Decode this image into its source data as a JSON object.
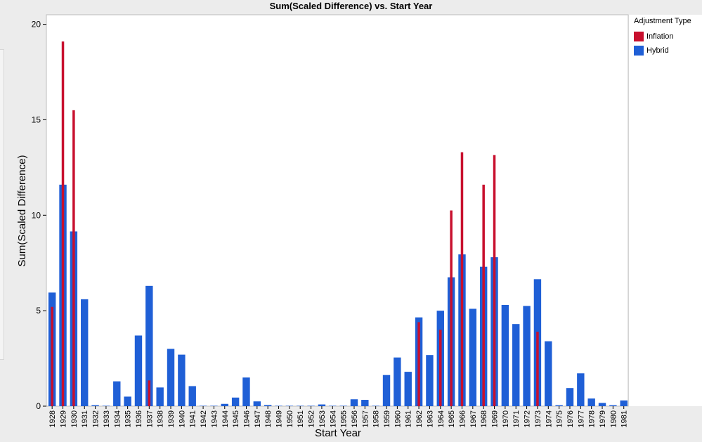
{
  "chart_data": {
    "type": "bar",
    "title": "Sum(Scaled Difference) vs. Start Year",
    "xlabel": "Start Year",
    "ylabel": "Sum(Scaled Difference)",
    "ylim": [
      0,
      20.5
    ],
    "yticks": [
      0,
      5,
      10,
      15,
      20
    ],
    "legend_title": "Adjustment Type",
    "legend_position": "right",
    "grid": false,
    "categories": [
      "1928",
      "1929",
      "1930",
      "1931",
      "1932",
      "1933",
      "1934",
      "1935",
      "1936",
      "1937",
      "1938",
      "1939",
      "1940",
      "1941",
      "1942",
      "1943",
      "1944",
      "1945",
      "1946",
      "1947",
      "1948",
      "1949",
      "1950",
      "1951",
      "1952",
      "1953",
      "1954",
      "1955",
      "1956",
      "1957",
      "1958",
      "1959",
      "1960",
      "1961",
      "1962",
      "1963",
      "1964",
      "1965",
      "1966",
      "1967",
      "1968",
      "1969",
      "1970",
      "1971",
      "1972",
      "1973",
      "1974",
      "1975",
      "1976",
      "1977",
      "1978",
      "1979",
      "1980",
      "1981"
    ],
    "series": [
      {
        "name": "Inflation",
        "color": "#c8102e",
        "values": [
          5.2,
          19.1,
          15.5,
          0,
          0,
          0,
          0,
          0,
          0,
          1.35,
          0,
          0,
          0,
          0,
          0,
          0,
          0,
          0,
          0,
          0,
          0,
          0,
          0,
          0,
          0,
          0,
          0,
          0,
          0,
          0,
          0,
          0,
          0,
          0,
          4.4,
          0,
          4.0,
          10.25,
          13.3,
          0,
          11.6,
          13.15,
          0,
          0,
          0,
          3.9,
          0,
          0,
          0,
          0,
          0,
          0,
          0,
          0
        ]
      },
      {
        "name": "Hybrid",
        "color": "#1f5fd6",
        "values": [
          5.95,
          11.6,
          9.15,
          5.6,
          0.05,
          0.02,
          1.3,
          0.5,
          3.7,
          6.3,
          0.98,
          3.0,
          2.7,
          1.05,
          0.02,
          0.02,
          0.12,
          0.45,
          1.5,
          0.25,
          0.06,
          0.02,
          0.02,
          0.02,
          0.02,
          0.09,
          0.02,
          0.02,
          0.36,
          0.33,
          0.02,
          1.63,
          2.55,
          1.8,
          4.65,
          2.68,
          5.0,
          6.75,
          7.95,
          5.1,
          7.3,
          7.8,
          5.3,
          4.3,
          5.25,
          6.65,
          3.4,
          0.05,
          0.95,
          1.72,
          0.4,
          0.17,
          0.05,
          0.3
        ]
      }
    ]
  }
}
